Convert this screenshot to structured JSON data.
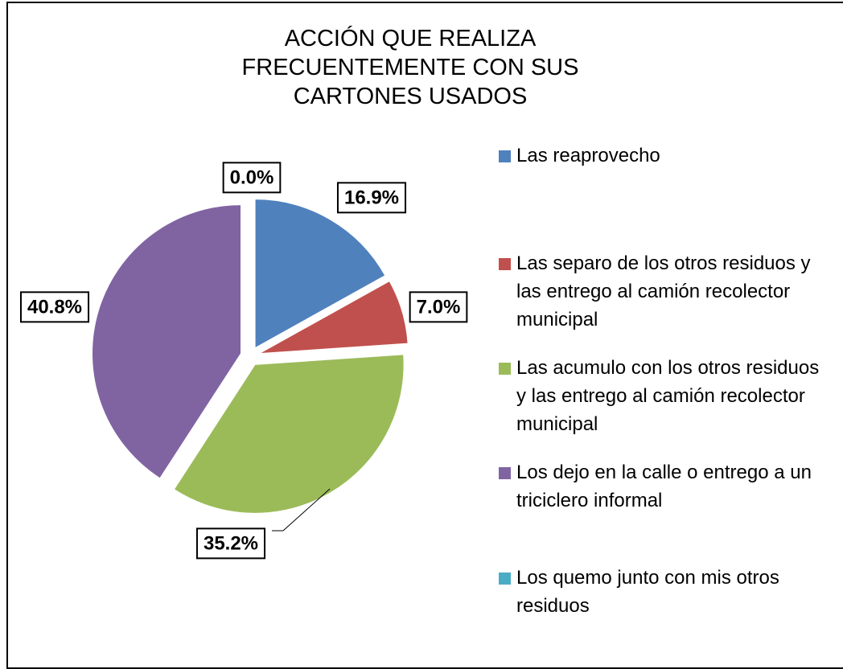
{
  "chart_data": {
    "type": "pie",
    "title": "ACCIÓN QUE REALIZA FRECUENTEMENTE CON SUS CARTONES USADOS",
    "categories": [
      "Las reaprovecho",
      "Las separo de los otros residuos y las entrego al camión recolector municipal",
      "Las acumulo con los otros residuos y las entrego al camión recolector municipal",
      "Los dejo en la calle o entrego a un triciclero informal",
      "Los quemo junto con mis otros residuos"
    ],
    "values": [
      16.9,
      7.0,
      35.2,
      40.8,
      0.0
    ],
    "value_labels": [
      "16.9%",
      "7.0%",
      "35.2%",
      "40.8%",
      "0.0%"
    ],
    "colors": [
      "#4f81bd",
      "#c0504d",
      "#9bbb59",
      "#8064a2",
      "#4bacc6"
    ],
    "legend": "right"
  }
}
